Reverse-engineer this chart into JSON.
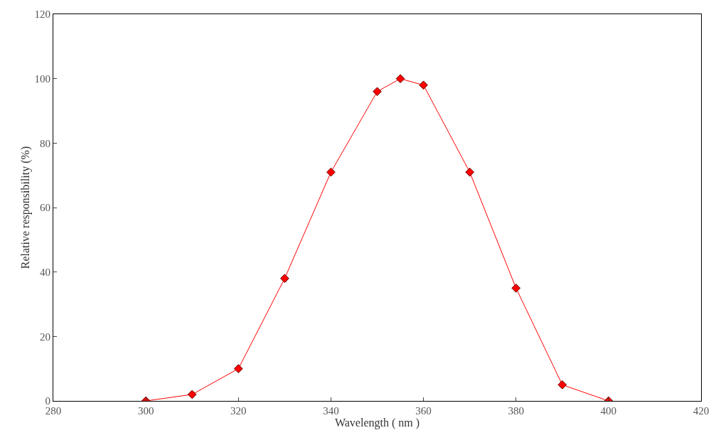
{
  "chart_data": {
    "type": "line",
    "xlabel": "Wavelength ( nm )",
    "ylabel": "Relative responsibility (%)",
    "x": [
      300,
      310,
      320,
      330,
      340,
      350,
      355,
      360,
      370,
      380,
      390,
      400
    ],
    "series": [
      {
        "color": "#ff0000",
        "values": [
          0,
          2,
          10,
          38,
          71,
          96,
          100,
          98,
          71,
          35,
          5,
          0
        ]
      }
    ],
    "xlim": [
      280,
      420
    ],
    "xticks": [
      280,
      300,
      320,
      340,
      360,
      380,
      400,
      420
    ],
    "ylim": [
      0,
      120
    ],
    "yticks": [
      0,
      20,
      40,
      60,
      80,
      100,
      120
    ],
    "marker": "diamond",
    "line_style": "solid"
  }
}
